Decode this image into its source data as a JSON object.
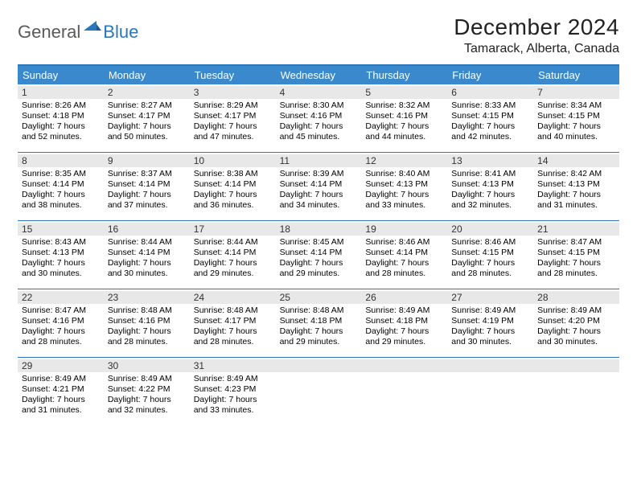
{
  "brand": {
    "general": "General",
    "blue": "Blue"
  },
  "title": "December 2024",
  "location": "Tamarack, Alberta, Canada",
  "colors": {
    "header_bg": "#3a89cc",
    "header_text": "#ffffff",
    "border": "#2a77bb",
    "daynum_bg": "#e8e8e8",
    "logo_gray": "#5a5a5a",
    "logo_blue": "#2a77bb",
    "page_bg": "#ffffff",
    "text": "#000000"
  },
  "dayNames": [
    "Sunday",
    "Monday",
    "Tuesday",
    "Wednesday",
    "Thursday",
    "Friday",
    "Saturday"
  ],
  "weeks": [
    [
      {
        "n": "1",
        "sr": "Sunrise: 8:26 AM",
        "ss": "Sunset: 4:18 PM",
        "d1": "Daylight: 7 hours",
        "d2": "and 52 minutes."
      },
      {
        "n": "2",
        "sr": "Sunrise: 8:27 AM",
        "ss": "Sunset: 4:17 PM",
        "d1": "Daylight: 7 hours",
        "d2": "and 50 minutes."
      },
      {
        "n": "3",
        "sr": "Sunrise: 8:29 AM",
        "ss": "Sunset: 4:17 PM",
        "d1": "Daylight: 7 hours",
        "d2": "and 47 minutes."
      },
      {
        "n": "4",
        "sr": "Sunrise: 8:30 AM",
        "ss": "Sunset: 4:16 PM",
        "d1": "Daylight: 7 hours",
        "d2": "and 45 minutes."
      },
      {
        "n": "5",
        "sr": "Sunrise: 8:32 AM",
        "ss": "Sunset: 4:16 PM",
        "d1": "Daylight: 7 hours",
        "d2": "and 44 minutes."
      },
      {
        "n": "6",
        "sr": "Sunrise: 8:33 AM",
        "ss": "Sunset: 4:15 PM",
        "d1": "Daylight: 7 hours",
        "d2": "and 42 minutes."
      },
      {
        "n": "7",
        "sr": "Sunrise: 8:34 AM",
        "ss": "Sunset: 4:15 PM",
        "d1": "Daylight: 7 hours",
        "d2": "and 40 minutes."
      }
    ],
    [
      {
        "n": "8",
        "sr": "Sunrise: 8:35 AM",
        "ss": "Sunset: 4:14 PM",
        "d1": "Daylight: 7 hours",
        "d2": "and 38 minutes."
      },
      {
        "n": "9",
        "sr": "Sunrise: 8:37 AM",
        "ss": "Sunset: 4:14 PM",
        "d1": "Daylight: 7 hours",
        "d2": "and 37 minutes."
      },
      {
        "n": "10",
        "sr": "Sunrise: 8:38 AM",
        "ss": "Sunset: 4:14 PM",
        "d1": "Daylight: 7 hours",
        "d2": "and 36 minutes."
      },
      {
        "n": "11",
        "sr": "Sunrise: 8:39 AM",
        "ss": "Sunset: 4:14 PM",
        "d1": "Daylight: 7 hours",
        "d2": "and 34 minutes."
      },
      {
        "n": "12",
        "sr": "Sunrise: 8:40 AM",
        "ss": "Sunset: 4:13 PM",
        "d1": "Daylight: 7 hours",
        "d2": "and 33 minutes."
      },
      {
        "n": "13",
        "sr": "Sunrise: 8:41 AM",
        "ss": "Sunset: 4:13 PM",
        "d1": "Daylight: 7 hours",
        "d2": "and 32 minutes."
      },
      {
        "n": "14",
        "sr": "Sunrise: 8:42 AM",
        "ss": "Sunset: 4:13 PM",
        "d1": "Daylight: 7 hours",
        "d2": "and 31 minutes."
      }
    ],
    [
      {
        "n": "15",
        "sr": "Sunrise: 8:43 AM",
        "ss": "Sunset: 4:13 PM",
        "d1": "Daylight: 7 hours",
        "d2": "and 30 minutes."
      },
      {
        "n": "16",
        "sr": "Sunrise: 8:44 AM",
        "ss": "Sunset: 4:14 PM",
        "d1": "Daylight: 7 hours",
        "d2": "and 30 minutes."
      },
      {
        "n": "17",
        "sr": "Sunrise: 8:44 AM",
        "ss": "Sunset: 4:14 PM",
        "d1": "Daylight: 7 hours",
        "d2": "and 29 minutes."
      },
      {
        "n": "18",
        "sr": "Sunrise: 8:45 AM",
        "ss": "Sunset: 4:14 PM",
        "d1": "Daylight: 7 hours",
        "d2": "and 29 minutes."
      },
      {
        "n": "19",
        "sr": "Sunrise: 8:46 AM",
        "ss": "Sunset: 4:14 PM",
        "d1": "Daylight: 7 hours",
        "d2": "and 28 minutes."
      },
      {
        "n": "20",
        "sr": "Sunrise: 8:46 AM",
        "ss": "Sunset: 4:15 PM",
        "d1": "Daylight: 7 hours",
        "d2": "and 28 minutes."
      },
      {
        "n": "21",
        "sr": "Sunrise: 8:47 AM",
        "ss": "Sunset: 4:15 PM",
        "d1": "Daylight: 7 hours",
        "d2": "and 28 minutes."
      }
    ],
    [
      {
        "n": "22",
        "sr": "Sunrise: 8:47 AM",
        "ss": "Sunset: 4:16 PM",
        "d1": "Daylight: 7 hours",
        "d2": "and 28 minutes."
      },
      {
        "n": "23",
        "sr": "Sunrise: 8:48 AM",
        "ss": "Sunset: 4:16 PM",
        "d1": "Daylight: 7 hours",
        "d2": "and 28 minutes."
      },
      {
        "n": "24",
        "sr": "Sunrise: 8:48 AM",
        "ss": "Sunset: 4:17 PM",
        "d1": "Daylight: 7 hours",
        "d2": "and 28 minutes."
      },
      {
        "n": "25",
        "sr": "Sunrise: 8:48 AM",
        "ss": "Sunset: 4:18 PM",
        "d1": "Daylight: 7 hours",
        "d2": "and 29 minutes."
      },
      {
        "n": "26",
        "sr": "Sunrise: 8:49 AM",
        "ss": "Sunset: 4:18 PM",
        "d1": "Daylight: 7 hours",
        "d2": "and 29 minutes."
      },
      {
        "n": "27",
        "sr": "Sunrise: 8:49 AM",
        "ss": "Sunset: 4:19 PM",
        "d1": "Daylight: 7 hours",
        "d2": "and 30 minutes."
      },
      {
        "n": "28",
        "sr": "Sunrise: 8:49 AM",
        "ss": "Sunset: 4:20 PM",
        "d1": "Daylight: 7 hours",
        "d2": "and 30 minutes."
      }
    ],
    [
      {
        "n": "29",
        "sr": "Sunrise: 8:49 AM",
        "ss": "Sunset: 4:21 PM",
        "d1": "Daylight: 7 hours",
        "d2": "and 31 minutes."
      },
      {
        "n": "30",
        "sr": "Sunrise: 8:49 AM",
        "ss": "Sunset: 4:22 PM",
        "d1": "Daylight: 7 hours",
        "d2": "and 32 minutes."
      },
      {
        "n": "31",
        "sr": "Sunrise: 8:49 AM",
        "ss": "Sunset: 4:23 PM",
        "d1": "Daylight: 7 hours",
        "d2": "and 33 minutes."
      },
      null,
      null,
      null,
      null
    ]
  ]
}
